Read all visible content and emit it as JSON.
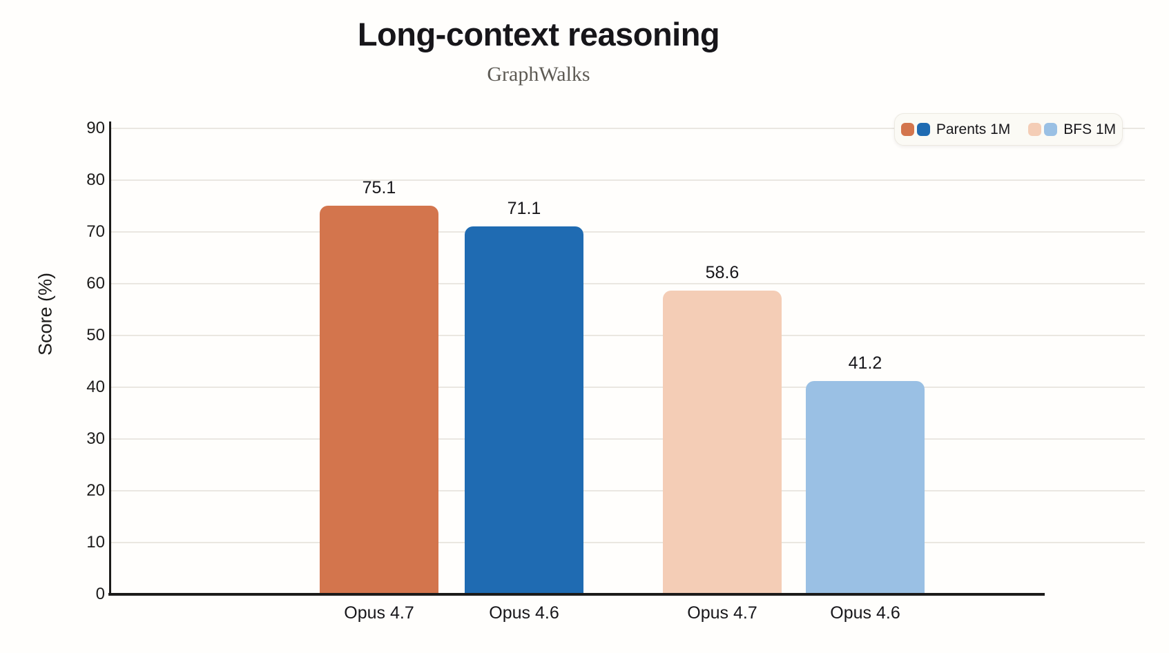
{
  "chart_data": {
    "type": "bar",
    "title": "Long-context reasoning",
    "subtitle": "GraphWalks",
    "ylabel": "Score (%)",
    "ylim": [
      0,
      90
    ],
    "yticks": [
      0,
      10,
      20,
      30,
      40,
      50,
      60,
      70,
      80,
      90
    ],
    "grid": true,
    "legend_position": "top-right",
    "categories": [
      "Opus 4.7",
      "Opus 4.6",
      "Opus 4.7",
      "Opus 4.6"
    ],
    "bars": [
      {
        "label": "Opus 4.7",
        "series": "Parents 1M",
        "value": 75.1,
        "value_label": "75.1",
        "color": "#d3754d"
      },
      {
        "label": "Opus 4.6",
        "series": "Parents 1M",
        "value": 71.1,
        "value_label": "71.1",
        "color": "#1f6bb2"
      },
      {
        "label": "Opus 4.7",
        "series": "BFS 1M",
        "value": 58.6,
        "value_label": "58.6",
        "color": "#f4cdb6"
      },
      {
        "label": "Opus 4.6",
        "series": "BFS 1M",
        "value": 41.2,
        "value_label": "41.2",
        "color": "#9ac0e4"
      }
    ],
    "legend": [
      {
        "label": "Parents 1M",
        "colors": [
          "#d3754d",
          "#1f6bb2"
        ]
      },
      {
        "label": "BFS 1M",
        "colors": [
          "#f4cdb6",
          "#9ac0e4"
        ]
      }
    ]
  },
  "colors": {
    "parents_opus47": "#d3754d",
    "parents_opus46": "#1f6bb2",
    "bfs_opus47": "#f4cdb6",
    "bfs_opus46": "#9ac0e4",
    "gridline": "#eae7e1",
    "axis": "#1c1b1a",
    "legend_background": "#fbfaf5"
  }
}
